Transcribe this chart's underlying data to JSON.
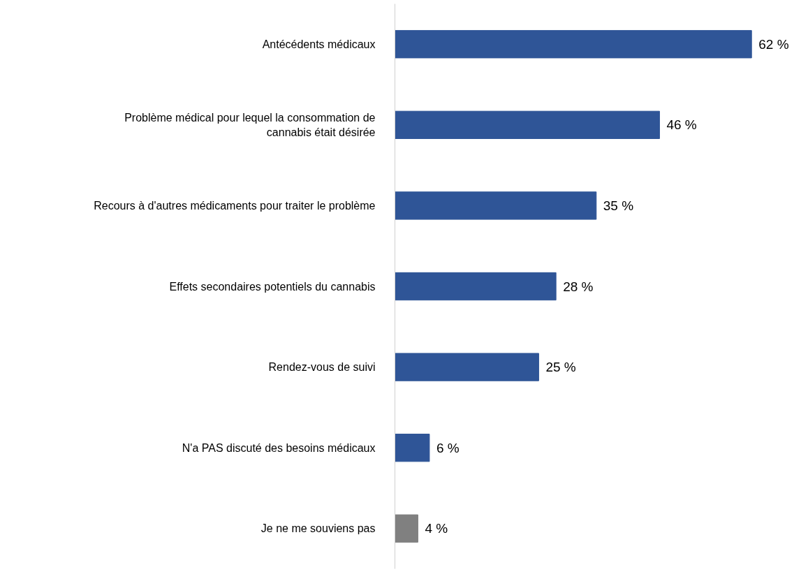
{
  "chart_data": {
    "type": "bar",
    "orientation": "horizontal",
    "categories": [
      "Antécédents médicaux",
      "Problème médical pour lequel la consommation de cannabis était désirée",
      "Recours à d'autres médicaments pour traiter le problème",
      "Effets secondaires potentiels du cannabis",
      "Rendez-vous de suivi",
      "N'a PAS discuté des besoins médicaux",
      "Je ne me souviens pas"
    ],
    "values": [
      62,
      46,
      35,
      28,
      25,
      6,
      4
    ],
    "colors": [
      "#2f5597",
      "#2f5597",
      "#2f5597",
      "#2f5597",
      "#2f5597",
      "#2f5597",
      "#808080"
    ],
    "value_labels": [
      "62 %",
      "46 %",
      "35 %",
      "28 %",
      "25 %",
      "6 %",
      "4 %"
    ],
    "grid": false
  }
}
